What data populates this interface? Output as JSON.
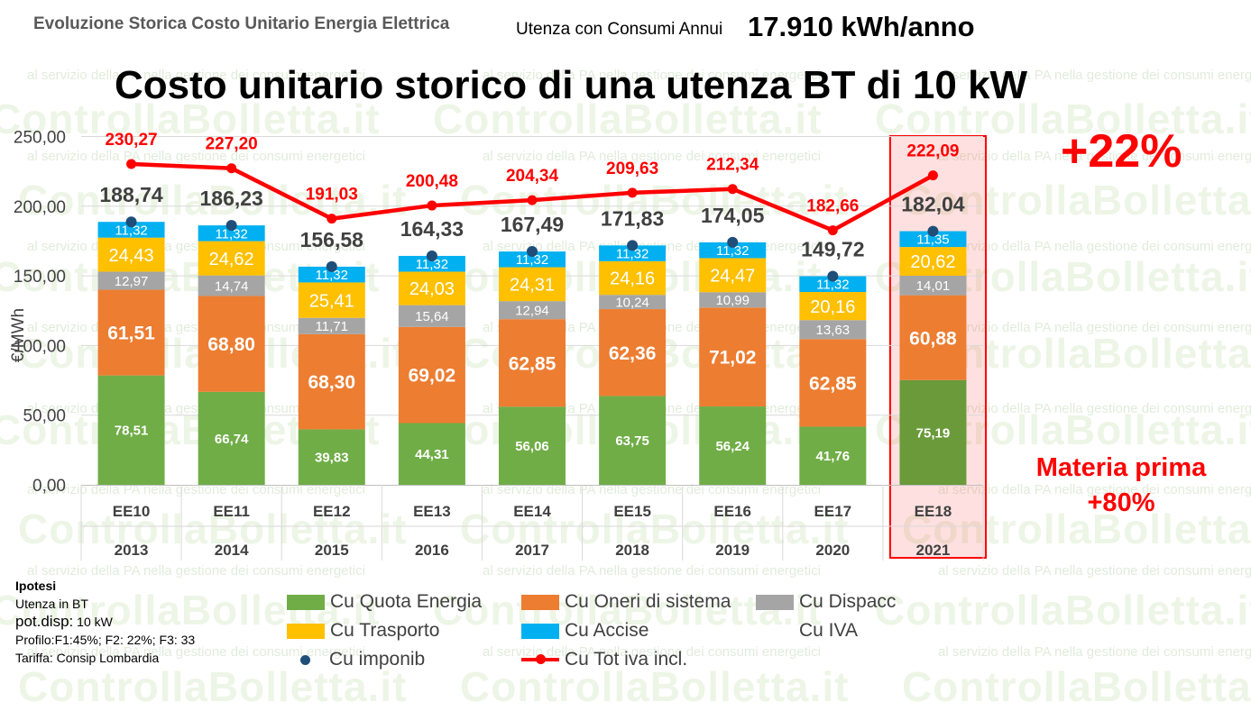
{
  "header": {
    "small_title": "Evoluzione Storica Costo Unitario Energia Elettrica",
    "consumption_label": "Utenza con Consumi Annui",
    "consumption_value": "17.910 kWh/anno",
    "main_title": "Costo unitario storico di una utenza BT di 10 kW"
  },
  "callouts": {
    "total_increase": "+22%",
    "materia_prima_line1": "Materia prima",
    "materia_prima_line2": "+80%"
  },
  "watermark": {
    "brand": "ControllaBolletta.it",
    "tagline": "al servizio della PA nella gestione dei consumi energetici"
  },
  "notes": {
    "title": "Ipotesi",
    "line1": "Utenza in BT",
    "line2_label": "pot.disp:",
    "line2_value": "10 kW",
    "line3": "Profilo:F1:45%; F2: 22%; F3: 33",
    "line4": "Tariffa: Consip Lombardia"
  },
  "chart_data": {
    "type": "bar",
    "stacked": true,
    "ylabel": "€/MWh",
    "ylim": [
      0,
      250
    ],
    "yticks": [
      "0,00",
      "50,00",
      "100,00",
      "150,00",
      "200,00",
      "250,00"
    ],
    "yticks_values": [
      0,
      50,
      100,
      150,
      200,
      250
    ],
    "categories": [
      "EE10",
      "EE11",
      "EE12",
      "EE13",
      "EE14",
      "EE15",
      "EE16",
      "EE17",
      "EE18"
    ],
    "years": [
      "2013",
      "2014",
      "2015",
      "2016",
      "2017",
      "2018",
      "2019",
      "2020",
      "2021"
    ],
    "highlight_category": "EE18",
    "legend_placement": "bottom",
    "grid": true,
    "series": [
      {
        "name": "Cu Quota Energia",
        "color": "#70ad47",
        "values": [
          78.51,
          66.74,
          39.83,
          44.31,
          56.06,
          63.75,
          56.24,
          41.76,
          75.19
        ],
        "labels": [
          "78,51",
          "66,74",
          "39,83",
          "44,31",
          "56,06",
          "63,75",
          "56,24",
          "41,76",
          "75,19"
        ]
      },
      {
        "name": "Cu Oneri di sistema",
        "color": "#ed7d31",
        "values": [
          61.51,
          68.8,
          68.3,
          69.02,
          62.85,
          62.36,
          71.02,
          62.85,
          60.88
        ],
        "labels": [
          "61,51",
          "68,80",
          "68,30",
          "69,02",
          "62,85",
          "62,36",
          "71,02",
          "62,85",
          "60,88"
        ]
      },
      {
        "name": "Cu Dispacc",
        "color": "#a5a5a5",
        "values": [
          12.97,
          14.74,
          11.71,
          15.64,
          12.94,
          10.24,
          10.99,
          13.63,
          14.01
        ],
        "labels": [
          "12,97",
          "14,74",
          "11,71",
          "15,64",
          "12,94",
          "10,24",
          "10,99",
          "13,63",
          "14,01"
        ]
      },
      {
        "name": "Cu Trasporto",
        "color": "#ffc000",
        "values": [
          24.43,
          24.62,
          25.41,
          24.03,
          24.31,
          24.16,
          24.47,
          20.16,
          20.62
        ],
        "labels": [
          "24,43",
          "24,62",
          "25,41",
          "24,03",
          "24,31",
          "24,16",
          "24,47",
          "20,16",
          "20,62"
        ]
      },
      {
        "name": "Cu Accise",
        "color": "#00b0f0",
        "values": [
          11.32,
          11.32,
          11.32,
          11.32,
          11.32,
          11.32,
          11.32,
          11.32,
          11.35
        ],
        "labels": [
          "11,32",
          "11,32",
          "11,32",
          "11,32",
          "11,32",
          "11,32",
          "11,32",
          "11,32",
          "11,35"
        ]
      },
      {
        "name": "Cu IVA",
        "color": "#4472c4",
        "values": [
          0,
          0,
          0,
          0,
          0,
          0,
          0,
          0,
          0
        ]
      }
    ],
    "imponibile": {
      "name": "Cu imponib",
      "color": "#1f4e79",
      "values": [
        188.74,
        186.23,
        156.58,
        164.33,
        167.49,
        171.83,
        174.05,
        149.72,
        182.04
      ],
      "labels": [
        "188,74",
        "186,23",
        "156,58",
        "164,33",
        "167,49",
        "171,83",
        "174,05",
        "149,72",
        "182,04"
      ]
    },
    "total": {
      "name": "Cu Tot iva incl.",
      "color": "#ff0000",
      "values": [
        230.27,
        227.2,
        191.03,
        200.48,
        204.34,
        209.63,
        212.34,
        182.66,
        222.09
      ],
      "labels": [
        "230,27",
        "227,20",
        "191,03",
        "200,48",
        "204,34",
        "209,63",
        "212,34",
        "182,66",
        "222,09"
      ]
    }
  }
}
